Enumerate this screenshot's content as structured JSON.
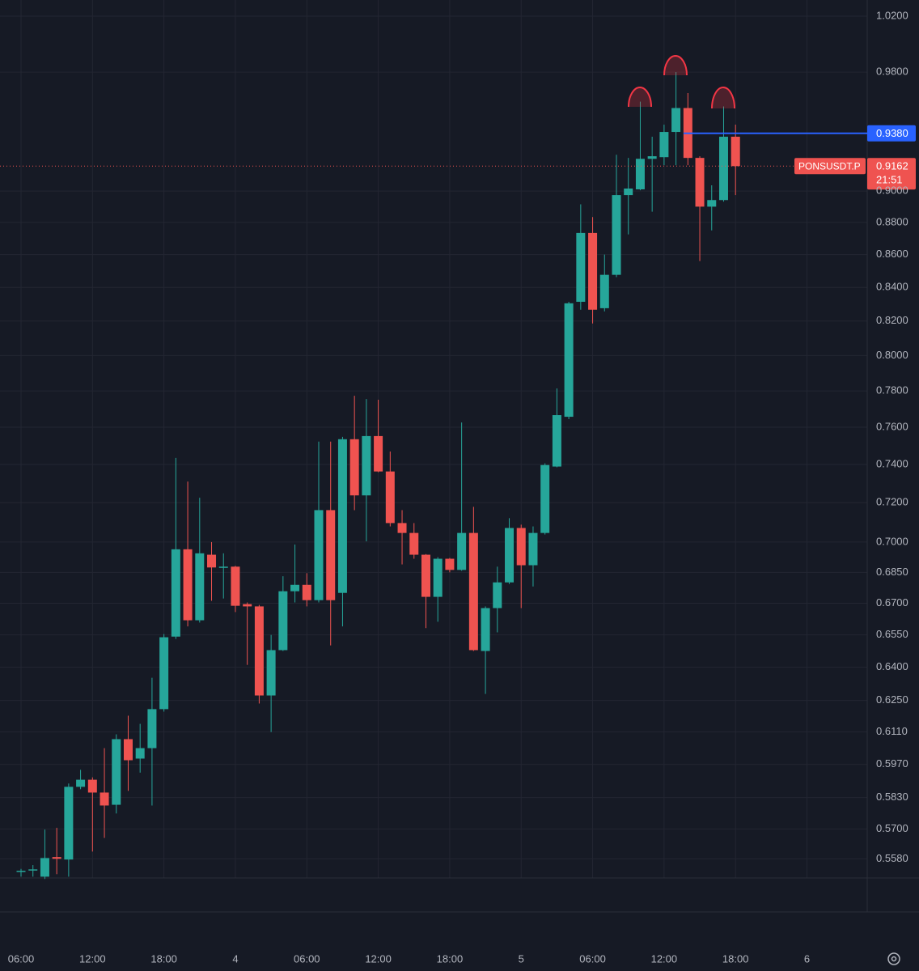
{
  "chart_data": {
    "type": "candlestick",
    "symbol": "PONSUSDT.P",
    "last_price": 0.9162,
    "countdown": "21:51",
    "log_scale": true,
    "grid": true,
    "up_color": "#26a69a",
    "down_color": "#ef5350",
    "horizontal_line": {
      "value": 0.938,
      "label": "0.9380",
      "color": "#2962ff"
    },
    "ylim": [
      0.5504,
      1.0319
    ],
    "yticks": [
      {
        "value": 1.02,
        "label": "1.0200"
      },
      {
        "value": 0.98,
        "label": "0.9800"
      },
      {
        "value": 0.9,
        "label": "0.9000"
      },
      {
        "value": 0.88,
        "label": "0.8800"
      },
      {
        "value": 0.86,
        "label": "0.8600"
      },
      {
        "value": 0.84,
        "label": "0.8400"
      },
      {
        "value": 0.82,
        "label": "0.8200"
      },
      {
        "value": 0.8,
        "label": "0.8000"
      },
      {
        "value": 0.78,
        "label": "0.7800"
      },
      {
        "value": 0.76,
        "label": "0.7600"
      },
      {
        "value": 0.74,
        "label": "0.7400"
      },
      {
        "value": 0.72,
        "label": "0.7200"
      },
      {
        "value": 0.7,
        "label": "0.7000"
      },
      {
        "value": 0.685,
        "label": "0.6850"
      },
      {
        "value": 0.67,
        "label": "0.6700"
      },
      {
        "value": 0.655,
        "label": "0.6550"
      },
      {
        "value": 0.64,
        "label": "0.6400"
      },
      {
        "value": 0.625,
        "label": "0.6250"
      },
      {
        "value": 0.611,
        "label": "0.6110"
      },
      {
        "value": 0.597,
        "label": "0.5970"
      },
      {
        "value": 0.583,
        "label": "0.5830"
      },
      {
        "value": 0.57,
        "label": "0.5700"
      },
      {
        "value": 0.558,
        "label": "0.5580"
      }
    ],
    "categories": [
      "06:00",
      null,
      null,
      null,
      null,
      null,
      "12:00",
      null,
      null,
      null,
      null,
      null,
      "18:00",
      null,
      null,
      null,
      null,
      null,
      "4",
      null,
      null,
      null,
      null,
      null,
      "06:00",
      null,
      null,
      null,
      null,
      null,
      "12:00",
      null,
      null,
      null,
      null,
      null,
      "18:00",
      null,
      null,
      null,
      null,
      null,
      "5",
      null,
      null,
      null,
      null,
      null,
      "06:00",
      null,
      null,
      null,
      null,
      null,
      "12:00",
      null,
      null,
      null,
      null,
      null,
      "18:00",
      null,
      null,
      null,
      null,
      null,
      "6"
    ],
    "open": [
      0.5528,
      0.5535,
      0.5509,
      0.5587,
      0.5577,
      0.5875,
      0.5905,
      0.5851,
      0.58,
      0.6079,
      0.5995,
      0.604,
      0.6211,
      0.6542,
      0.6964,
      0.6619,
      0.6937,
      0.6874,
      0.6878,
      0.6696,
      0.6685,
      0.6272,
      0.6479,
      0.6758,
      0.6789,
      0.6715,
      0.7162,
      0.675,
      0.7535,
      0.7238,
      0.7552,
      0.7363,
      0.7096,
      0.7046,
      0.6937,
      0.6731,
      0.6917,
      0.6862,
      0.7046,
      0.6475,
      0.6677,
      0.6801,
      0.7071,
      0.6885,
      0.7046,
      0.7389,
      0.7657,
      0.8314,
      0.8734,
      0.8276,
      0.8476,
      0.8974,
      0.9011,
      0.921,
      0.9221,
      0.9389,
      0.9551,
      0.9216,
      0.89,
      0.8942,
      0.9357,
      null,
      null,
      null,
      null,
      null,
      null
    ],
    "high": [
      0.554,
      0.5555,
      0.5698,
      0.5705,
      0.5889,
      0.5947,
      0.5915,
      0.604,
      0.61,
      0.6182,
      0.6146,
      0.6352,
      0.6554,
      0.7435,
      0.731,
      0.7226,
      0.7,
      0.6944,
      0.6882,
      0.6704,
      0.6692,
      0.655,
      0.6831,
      0.6988,
      0.6846,
      0.7522,
      0.7522,
      0.7548,
      0.7773,
      0.7755,
      0.7751,
      0.7469,
      0.7162,
      0.7096,
      0.694,
      0.6925,
      0.6921,
      0.7626,
      0.7179,
      0.6685,
      0.6878,
      0.7121,
      0.7088,
      0.7079,
      0.7406,
      0.7814,
      0.8314,
      0.8915,
      0.8834,
      0.86,
      0.9237,
      0.9216,
      0.9595,
      0.9357,
      0.9438,
      0.98,
      0.9654,
      0.9227,
      0.9037,
      0.9562,
      0.9438,
      null,
      null,
      null,
      null,
      null,
      null
    ],
    "low": [
      0.5509,
      0.5509,
      0.55,
      0.5519,
      0.5509,
      0.5865,
      0.5609,
      0.5664,
      0.5764,
      0.5858,
      0.5935,
      0.5797,
      0.62,
      0.6531,
      0.659,
      0.6608,
      0.6712,
      0.6723,
      0.6658,
      0.6411,
      0.6236,
      0.611,
      0.6475,
      0.6704,
      0.6685,
      0.6704,
      0.6501,
      0.659,
      0.7162,
      0.7004,
      0.7359,
      0.7079,
      0.6889,
      0.6917,
      0.6582,
      0.6612,
      0.685,
      0.6858,
      0.6475,
      0.6279,
      0.6562,
      0.6793,
      0.6677,
      0.6781,
      0.7038,
      0.7385,
      0.7644,
      0.8267,
      0.8186,
      0.8257,
      0.8462,
      0.8725,
      0.9005,
      0.8868,
      0.9168,
      0.9168,
      0.9168,
      0.856,
      0.875,
      0.8932,
      0.8974,
      null,
      null,
      null,
      null,
      null,
      null
    ],
    "close": [
      0.5532,
      0.5538,
      0.5583,
      0.558,
      0.5875,
      0.5905,
      0.5851,
      0.5797,
      0.6079,
      0.5988,
      0.604,
      0.6211,
      0.6539,
      0.6964,
      0.6619,
      0.6944,
      0.6874,
      0.6878,
      0.6688,
      0.6685,
      0.6272,
      0.6479,
      0.6758,
      0.6789,
      0.6715,
      0.7162,
      0.6715,
      0.7535,
      0.7238,
      0.7552,
      0.7363,
      0.7096,
      0.7046,
      0.6937,
      0.6731,
      0.6917,
      0.6862,
      0.7046,
      0.6479,
      0.6677,
      0.6801,
      0.7071,
      0.6885,
      0.7046,
      0.7397,
      0.7666,
      0.8305,
      0.8734,
      0.8267,
      0.8476,
      0.8974,
      0.9016,
      0.921,
      0.9227,
      0.9389,
      0.9551,
      0.9216,
      0.89,
      0.8942,
      0.9357,
      0.9162,
      null,
      null,
      null,
      null,
      null,
      null
    ]
  }
}
